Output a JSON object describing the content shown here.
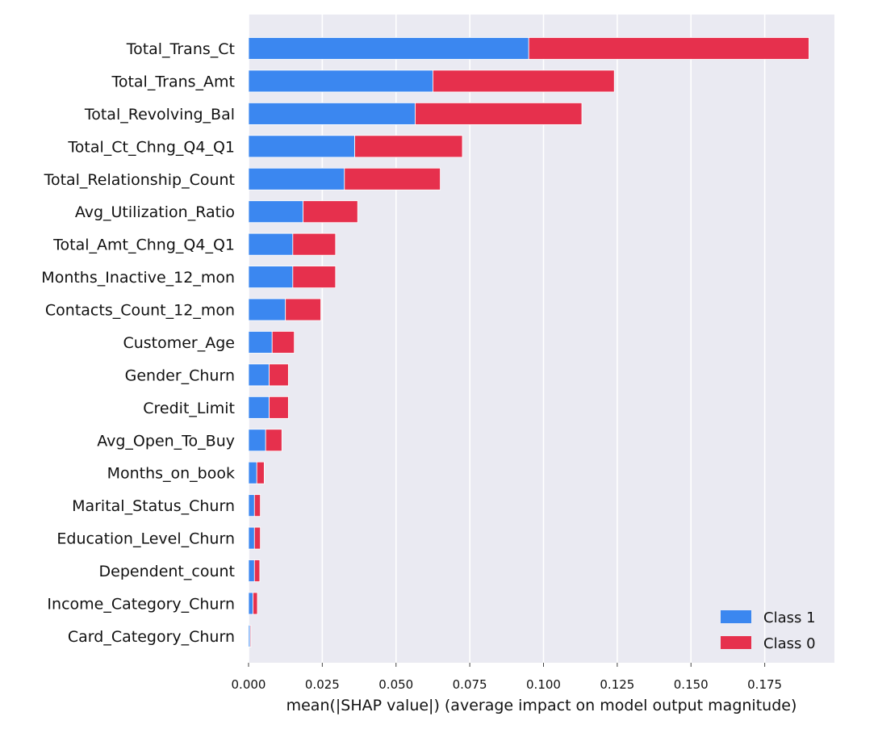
{
  "chart_data": {
    "type": "bar",
    "orientation": "horizontal",
    "stacked": true,
    "title": "",
    "xlabel": "mean(|SHAP value|) (average impact on model output magnitude)",
    "ylabel": "",
    "xlim": [
      0,
      0.2
    ],
    "xticks": [
      "0.000",
      "0.025",
      "0.050",
      "0.075",
      "0.100",
      "0.125",
      "0.150",
      "0.175"
    ],
    "xtick_values": [
      0.0,
      0.025,
      0.05,
      0.075,
      0.1,
      0.125,
      0.15,
      0.175
    ],
    "grid": true,
    "legend_position": "bottom-right",
    "categories": [
      "Total_Trans_Ct",
      "Total_Trans_Amt",
      "Total_Revolving_Bal",
      "Total_Ct_Chng_Q4_Q1",
      "Total_Relationship_Count",
      "Avg_Utilization_Ratio",
      "Total_Amt_Chng_Q4_Q1",
      "Months_Inactive_12_mon",
      "Contacts_Count_12_mon",
      "Customer_Age",
      "Gender_Churn",
      "Credit_Limit",
      "Avg_Open_To_Buy",
      "Months_on_book",
      "Marital_Status_Churn",
      "Education_Level_Churn",
      "Dependent_count",
      "Income_Category_Churn",
      "Card_Category_Churn"
    ],
    "series": [
      {
        "name": "Class 1",
        "color": "#3b87f0",
        "values": [
          0.095,
          0.0625,
          0.0565,
          0.036,
          0.0325,
          0.0185,
          0.015,
          0.015,
          0.0125,
          0.008,
          0.007,
          0.007,
          0.0058,
          0.0028,
          0.002,
          0.002,
          0.002,
          0.0015,
          0.0005
        ]
      },
      {
        "name": "Class 0",
        "color": "#e6304d",
        "values": [
          0.095,
          0.0615,
          0.0565,
          0.0365,
          0.0325,
          0.0185,
          0.0145,
          0.0145,
          0.012,
          0.0075,
          0.0065,
          0.0065,
          0.0055,
          0.0025,
          0.002,
          0.002,
          0.0018,
          0.0015,
          0.0003
        ]
      }
    ]
  }
}
